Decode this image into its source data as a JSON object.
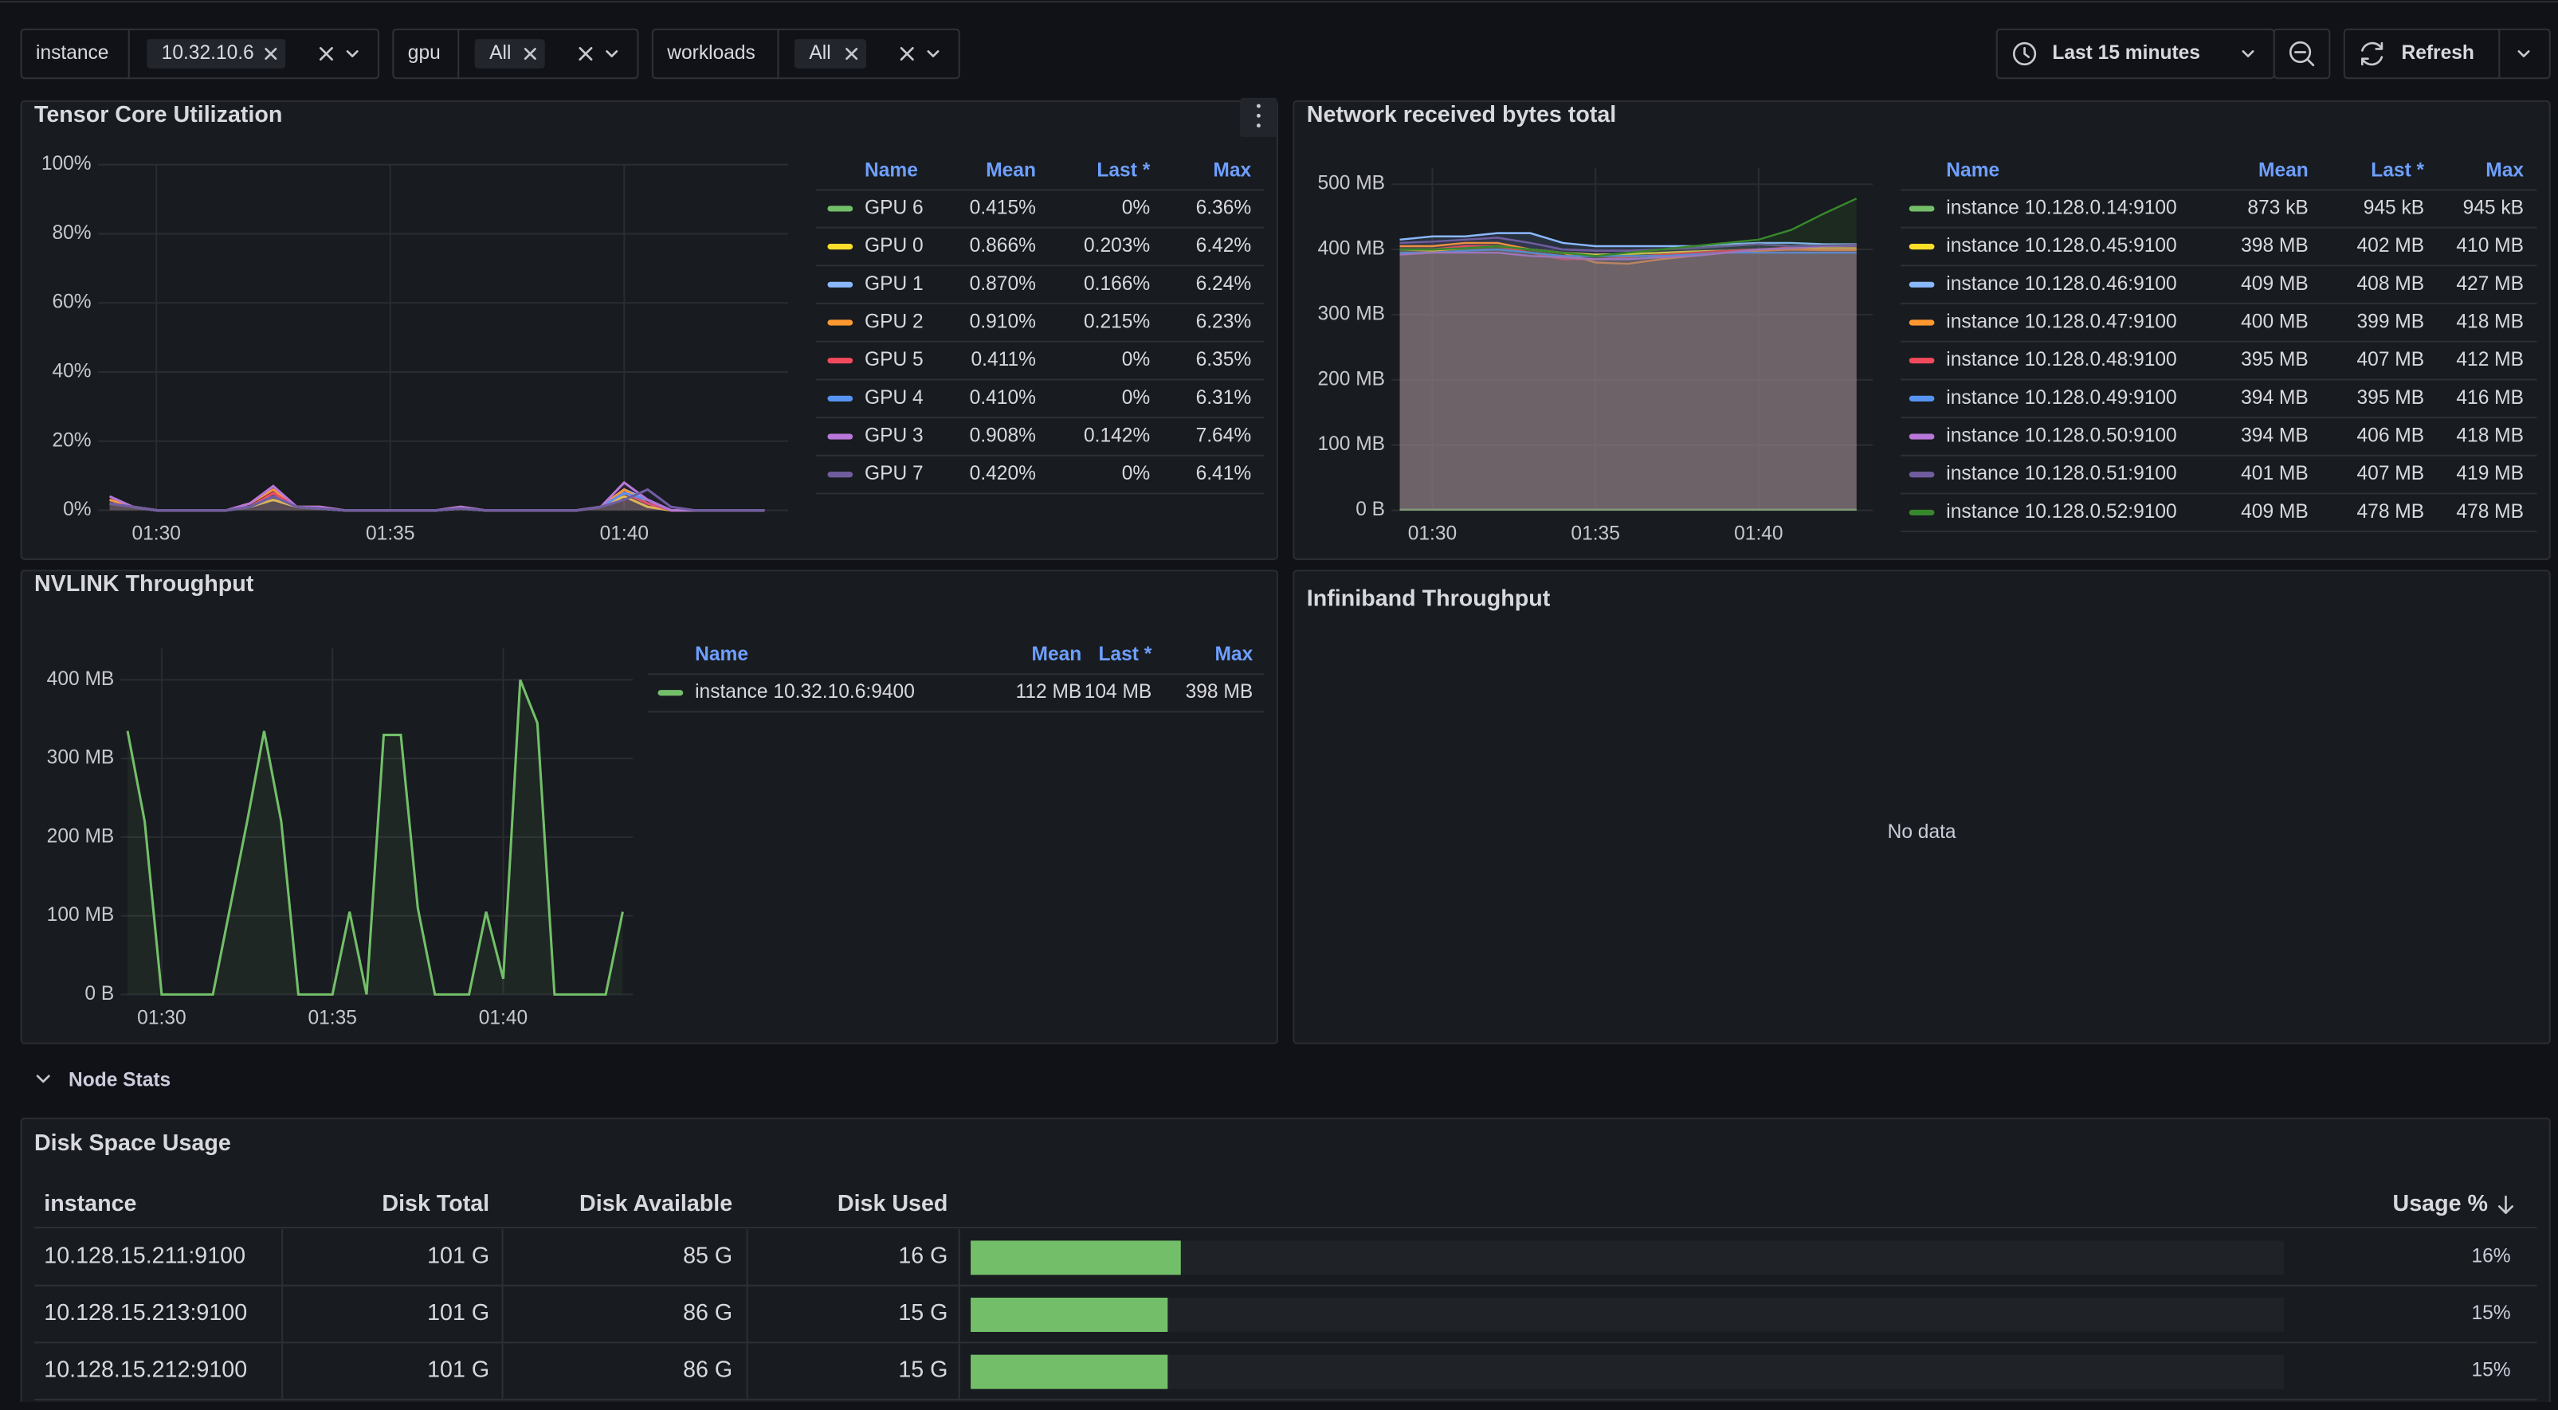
{
  "toolbar": {
    "variables": [
      {
        "label": "instance",
        "value": "10.32.10.6"
      },
      {
        "label": "gpu",
        "value": "All"
      },
      {
        "label": "workloads",
        "value": "All"
      }
    ],
    "time_range": "Last 15 minutes",
    "refresh": "Refresh"
  },
  "chart_data": [
    {
      "type": "line",
      "title": "Tensor Core Utilization",
      "x": [
        89,
        89.5,
        90,
        90.5,
        91,
        91.5,
        92,
        92.5,
        93,
        93.5,
        94,
        94.5,
        95,
        95.5,
        96,
        96.5,
        97,
        97.5,
        98,
        98.5,
        99,
        99.5,
        100,
        100.5,
        101,
        101.5,
        102,
        102.5,
        103
      ],
      "xlim": [
        88.75,
        103.5
      ],
      "xticks": [
        {
          "value": 90,
          "label": "01:30"
        },
        {
          "value": 95,
          "label": "01:35"
        },
        {
          "value": 100,
          "label": "01:40"
        }
      ],
      "ylim": [
        0,
        100
      ],
      "yticks": [
        {
          "value": 0,
          "label": "0%"
        },
        {
          "value": 20,
          "label": "20%"
        },
        {
          "value": 40,
          "label": "40%"
        },
        {
          "value": 60,
          "label": "60%"
        },
        {
          "value": 80,
          "label": "80%"
        },
        {
          "value": 100,
          "label": "100%"
        }
      ],
      "grid": true,
      "legend_columns": [
        "Name",
        "Mean",
        "Last *",
        "Max"
      ],
      "series": [
        {
          "name": "GPU 6",
          "color": "#73bf69",
          "mean": "0.415%",
          "last": "0%",
          "max": "6.36%",
          "values": [
            2,
            1,
            0,
            0,
            0,
            0,
            1,
            4,
            1,
            0.5,
            0,
            0,
            0,
            0,
            0,
            0.5,
            0,
            0,
            0,
            0,
            0,
            1,
            5,
            2,
            0,
            0,
            0,
            0,
            0
          ]
        },
        {
          "name": "GPU 0",
          "color": "#fade2a",
          "mean": "0.866%",
          "last": "0.203%",
          "max": "6.42%",
          "values": [
            2,
            1,
            0,
            0,
            0,
            0,
            1,
            3,
            1,
            0.5,
            0,
            0,
            0,
            0,
            0,
            0.5,
            0,
            0,
            0,
            0,
            0,
            1,
            4,
            1,
            0,
            0,
            0,
            0,
            0
          ]
        },
        {
          "name": "GPU 1",
          "color": "#8ab8ff",
          "mean": "0.870%",
          "last": "0.166%",
          "max": "6.24%",
          "values": [
            3,
            1,
            0,
            0,
            0,
            0,
            1,
            4,
            1,
            0.5,
            0,
            0,
            0,
            0,
            0,
            1,
            0,
            0,
            0,
            0,
            0,
            1,
            6,
            3,
            0,
            0,
            0,
            0,
            0
          ]
        },
        {
          "name": "GPU 2",
          "color": "#ff9830",
          "mean": "0.910%",
          "last": "0.215%",
          "max": "6.23%",
          "values": [
            3,
            1,
            0,
            0,
            0,
            0,
            2,
            6,
            1,
            1,
            0,
            0,
            0,
            0,
            0,
            1,
            0,
            0,
            0,
            0,
            0,
            1,
            6,
            2,
            0,
            0,
            0,
            0,
            0
          ]
        },
        {
          "name": "GPU 5",
          "color": "#f2495c",
          "mean": "0.411%",
          "last": "0%",
          "max": "6.35%",
          "values": [
            2,
            1,
            0,
            0,
            0,
            0,
            1,
            5,
            1,
            0.5,
            0,
            0,
            0,
            0,
            0,
            0.5,
            0,
            0,
            0,
            0,
            0,
            1,
            5,
            2,
            0,
            0,
            0,
            0,
            0
          ]
        },
        {
          "name": "GPU 4",
          "color": "#5794f2",
          "mean": "0.410%",
          "last": "0%",
          "max": "6.31%",
          "values": [
            2,
            1,
            0,
            0,
            0,
            0,
            1,
            4,
            1,
            0.5,
            0,
            0,
            0,
            0,
            0,
            0.5,
            0,
            0,
            0,
            0,
            0,
            1,
            5,
            3,
            0,
            0,
            0,
            0,
            0
          ]
        },
        {
          "name": "GPU 3",
          "color": "#b877d9",
          "mean": "0.908%",
          "last": "0.142%",
          "max": "7.64%",
          "values": [
            4,
            1,
            0,
            0,
            0,
            0,
            2,
            7,
            1,
            1,
            0,
            0,
            0,
            0,
            0,
            1,
            0,
            0,
            0,
            0,
            0,
            1,
            8,
            3,
            0,
            0,
            0,
            0,
            0
          ]
        },
        {
          "name": "GPU 7",
          "color": "#705da0",
          "mean": "0.420%",
          "last": "0%",
          "max": "6.41%",
          "values": [
            2,
            1,
            0,
            0,
            0,
            0,
            1,
            4,
            1,
            0.5,
            0,
            0,
            0,
            0,
            0,
            0.5,
            0,
            0,
            0,
            0,
            0,
            1,
            3,
            6,
            1,
            0,
            0,
            0,
            0
          ]
        }
      ]
    },
    {
      "type": "area",
      "title": "Network received bytes total",
      "x": [
        89,
        90,
        91,
        92,
        93,
        94,
        95,
        96,
        97,
        98,
        99,
        100,
        101,
        102,
        103
      ],
      "xlim": [
        88.75,
        103.5
      ],
      "xticks": [
        {
          "value": 90,
          "label": "01:30"
        },
        {
          "value": 95,
          "label": "01:35"
        },
        {
          "value": 100,
          "label": "01:40"
        }
      ],
      "ylim": [
        0,
        525
      ],
      "yticks": [
        {
          "value": 0,
          "label": "0 B"
        },
        {
          "value": 100,
          "label": "100 MB"
        },
        {
          "value": 200,
          "label": "200 MB"
        },
        {
          "value": 300,
          "label": "300 MB"
        },
        {
          "value": 400,
          "label": "400 MB"
        },
        {
          "value": 500,
          "label": "500 MB"
        }
      ],
      "grid": true,
      "legend_columns": [
        "Name",
        "Mean",
        "Last *",
        "Max"
      ],
      "series": [
        {
          "name": "instance 10.128.0.14:9100",
          "color": "#73bf69",
          "mean": "873 kB",
          "last": "945 kB",
          "max": "945 kB",
          "values": [
            0.9,
            0.9,
            0.9,
            0.9,
            0.9,
            0.9,
            0.9,
            0.9,
            0.9,
            0.9,
            0.9,
            0.9,
            0.9,
            0.9,
            0.9
          ]
        },
        {
          "name": "instance 10.128.0.45:9100",
          "color": "#fade2a",
          "mean": "398 MB",
          "last": "402 MB",
          "max": "410 MB",
          "values": [
            400,
            398,
            402,
            405,
            400,
            395,
            392,
            393,
            395,
            397,
            398,
            400,
            401,
            402,
            402
          ]
        },
        {
          "name": "instance 10.128.0.46:9100",
          "color": "#8ab8ff",
          "mean": "409 MB",
          "last": "408 MB",
          "max": "427 MB",
          "values": [
            415,
            420,
            420,
            425,
            425,
            410,
            405,
            405,
            405,
            405,
            408,
            410,
            410,
            408,
            408
          ]
        },
        {
          "name": "instance 10.128.0.47:9100",
          "color": "#ff9830",
          "mean": "400 MB",
          "last": "399 MB",
          "max": "418 MB",
          "values": [
            405,
            405,
            410,
            410,
            400,
            395,
            380,
            378,
            385,
            390,
            395,
            398,
            400,
            399,
            399
          ]
        },
        {
          "name": "instance 10.128.0.48:9100",
          "color": "#f2495c",
          "mean": "395 MB",
          "last": "407 MB",
          "max": "412 MB",
          "values": [
            400,
            400,
            405,
            405,
            395,
            385,
            385,
            388,
            392,
            395,
            398,
            400,
            403,
            405,
            407
          ]
        },
        {
          "name": "instance 10.128.0.49:9100",
          "color": "#5794f2",
          "mean": "394 MB",
          "last": "395 MB",
          "max": "416 MB",
          "values": [
            395,
            395,
            398,
            400,
            395,
            390,
            390,
            390,
            390,
            392,
            395,
            395,
            395,
            395,
            395
          ]
        },
        {
          "name": "instance 10.128.0.50:9100",
          "color": "#b877d9",
          "mean": "394 MB",
          "last": "406 MB",
          "max": "418 MB",
          "values": [
            392,
            395,
            395,
            395,
            390,
            388,
            385,
            385,
            388,
            390,
            395,
            400,
            402,
            405,
            406
          ]
        },
        {
          "name": "instance 10.128.0.51:9100",
          "color": "#705da0",
          "mean": "401 MB",
          "last": "407 MB",
          "max": "419 MB",
          "values": [
            410,
            412,
            415,
            418,
            410,
            400,
            398,
            398,
            400,
            402,
            405,
            408,
            405,
            406,
            407
          ]
        },
        {
          "name": "instance 10.128.0.52:9100",
          "color": "#37872d",
          "mean": "409 MB",
          "last": "478 MB",
          "max": "478 MB",
          "values": [
            400,
            400,
            402,
            405,
            400,
            395,
            390,
            395,
            400,
            405,
            410,
            415,
            430,
            455,
            478
          ]
        }
      ]
    },
    {
      "type": "line",
      "title": "NVLINK Throughput",
      "x": [
        89,
        89.5,
        90,
        90.5,
        91,
        91.5,
        92,
        92.5,
        93,
        93.5,
        94,
        94.5,
        95,
        95.5,
        96,
        96.5,
        97,
        97.5,
        98,
        98.5,
        99,
        99.5,
        100,
        100.5,
        101,
        101.5,
        102,
        102.5,
        103,
        103.5
      ],
      "xlim": [
        88.8,
        103.8
      ],
      "xticks": [
        {
          "value": 90,
          "label": "01:30"
        },
        {
          "value": 95,
          "label": "01:35"
        },
        {
          "value": 100,
          "label": "01:40"
        }
      ],
      "ylim": [
        0,
        440
      ],
      "yticks": [
        {
          "value": 0,
          "label": "0 B"
        },
        {
          "value": 100,
          "label": "100 MB"
        },
        {
          "value": 200,
          "label": "200 MB"
        },
        {
          "value": 300,
          "label": "300 MB"
        },
        {
          "value": 400,
          "label": "400 MB"
        }
      ],
      "grid": true,
      "legend_columns": [
        "Name",
        "Mean",
        "Last *",
        "Max"
      ],
      "series": [
        {
          "name": "instance 10.32.10.6:9400",
          "color": "#73bf69",
          "mean": "112 MB",
          "last": "104 MB",
          "max": "398 MB",
          "values": [
            335,
            220,
            0,
            0,
            0,
            0,
            110,
            220,
            335,
            220,
            0,
            0,
            0,
            105,
            0,
            330,
            330,
            110,
            0,
            0,
            0,
            105,
            20,
            400,
            345,
            0,
            0,
            0,
            0,
            105
          ]
        }
      ]
    }
  ],
  "infiniband": {
    "title": "Infiniband Throughput",
    "message": "No data"
  },
  "node_stats": {
    "title": "Node Stats",
    "panel_title": "Disk Space Usage",
    "columns": [
      "instance",
      "Disk Total",
      "Disk Available",
      "Disk Used",
      "Usage %"
    ],
    "rows": [
      [
        "10.128.15.211:9100",
        "101 G",
        "85 G",
        "16 G"
      ],
      [
        "10.128.15.213:9100",
        "101 G",
        "86 G",
        "15 G"
      ],
      [
        "10.128.15.212:9100",
        "101 G",
        "86 G",
        "15 G"
      ]
    ],
    "usage_max": 100,
    "usage_values": [
      16,
      15,
      15
    ],
    "usage_labels": [
      "16%",
      "15%",
      "15%"
    ]
  }
}
